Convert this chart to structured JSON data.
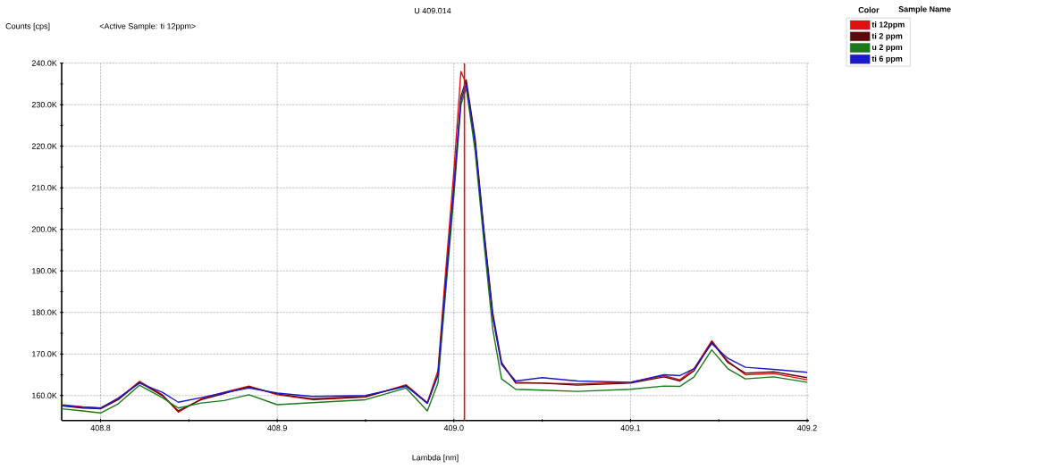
{
  "chart_data": {
    "type": "line",
    "title": "U 409.014",
    "subtitle": "<Active Sample: ti 12ppm>",
    "xlabel": "Lambda [nm]",
    "ylabel": "Counts [cps]",
    "legend_title": "Sample Name",
    "annotations": [
      "Color"
    ],
    "x": [
      408.778,
      408.79,
      408.8,
      408.81,
      408.822,
      408.835,
      408.844,
      408.857,
      408.87,
      408.884,
      408.9,
      408.92,
      408.95,
      408.973,
      408.985,
      408.991,
      408.995,
      409.0,
      409.004,
      409.007,
      409.012,
      409.017,
      409.022,
      409.027,
      409.035,
      409.05,
      409.07,
      409.1,
      409.119,
      409.128,
      409.136,
      409.146,
      409.155,
      409.165,
      409.181,
      409.2
    ],
    "series": [
      {
        "name": "ti 12ppm",
        "color": "#e01010",
        "values": [
          157800,
          157300,
          157000,
          159200,
          163400,
          160200,
          156000,
          159200,
          160800,
          162300,
          160200,
          159000,
          159600,
          162600,
          158300,
          166000,
          188000,
          214000,
          238000,
          235000,
          221000,
          199000,
          179000,
          167500,
          163200,
          163000,
          162800,
          163200,
          164800,
          163800,
          166500,
          173200,
          168300,
          165000,
          165300,
          163800
        ]
      },
      {
        "name": "ti 2 ppm",
        "color": "#5a0a0a",
        "values": [
          157500,
          157000,
          156800,
          159000,
          163200,
          160000,
          156300,
          159000,
          160500,
          162100,
          160400,
          159200,
          159800,
          162400,
          158100,
          165000,
          185000,
          210000,
          232000,
          236000,
          222000,
          200000,
          180000,
          168000,
          163000,
          163000,
          162500,
          163000,
          164500,
          163500,
          166000,
          172900,
          168000,
          165400,
          165700,
          164300
        ]
      },
      {
        "name": "u 2 ppm",
        "color": "#1a7a1a",
        "values": [
          156800,
          156300,
          155800,
          158000,
          162500,
          159500,
          157000,
          158200,
          158800,
          160200,
          157800,
          158300,
          159000,
          161800,
          156300,
          163000,
          183000,
          208000,
          230000,
          234000,
          219000,
          197000,
          176000,
          164000,
          161500,
          161300,
          161000,
          161500,
          162300,
          162200,
          164500,
          171000,
          166500,
          164000,
          164500,
          163200
        ]
      },
      {
        "name": "ti 6 ppm",
        "color": "#1a1acc",
        "values": [
          157600,
          157200,
          157000,
          159400,
          163000,
          160800,
          158400,
          159500,
          160700,
          161800,
          160600,
          159800,
          160000,
          162200,
          158200,
          165000,
          185000,
          210000,
          231000,
          235000,
          221000,
          199000,
          179000,
          167500,
          163500,
          164300,
          163500,
          163200,
          165000,
          164800,
          166500,
          172500,
          169000,
          166800,
          166300,
          165600
        ]
      }
    ],
    "xlim": [
      408.778,
      409.201
    ],
    "ylim": [
      154000,
      240000
    ],
    "xticks": [
      408.8,
      408.9,
      {
        "value": 409.0,
        "label": "409.0"
      },
      409.1,
      409.2
    ],
    "yticks": [
      {
        "value": 160000,
        "label": "160.0K"
      },
      {
        "value": 170000,
        "label": "170.0K"
      },
      {
        "value": 180000,
        "label": "180.0K"
      },
      {
        "value": 190000,
        "label": "190.0K"
      },
      {
        "value": 200000,
        "label": "200.0K"
      },
      {
        "value": 210000,
        "label": "210.0K"
      },
      {
        "value": 220000,
        "label": "220.0K"
      },
      {
        "value": 230000,
        "label": "230.0K"
      },
      {
        "value": 240000,
        "label": "240.0K"
      }
    ],
    "ref_lines": [
      {
        "axis": "x",
        "value": 409.006,
        "color": "#e01010"
      }
    ],
    "grid": true,
    "legend": "top right",
    "marker": "none",
    "line_style": "solid"
  }
}
